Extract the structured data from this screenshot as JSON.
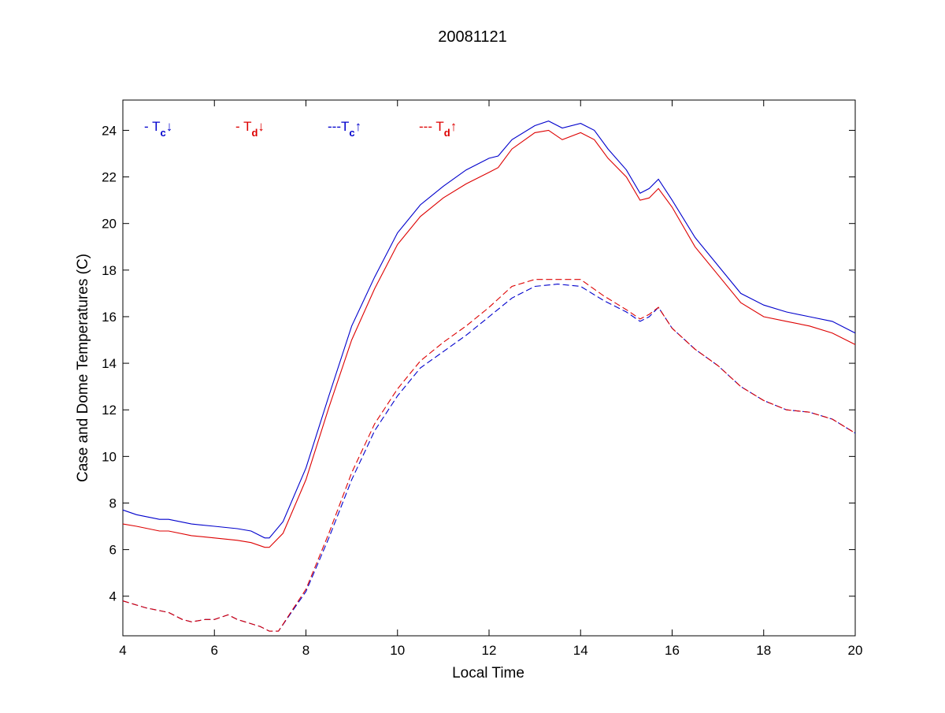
{
  "chart_data": {
    "type": "line",
    "title": "20081121",
    "xlabel": "Local Time",
    "ylabel": "Case and Dome Temperatures (C)",
    "xlim": [
      4,
      20
    ],
    "ylim": [
      2.3,
      25.3
    ],
    "xticks": [
      4,
      6,
      8,
      10,
      12,
      14,
      16,
      18,
      20
    ],
    "yticks": [
      4,
      6,
      8,
      10,
      12,
      14,
      16,
      18,
      20,
      22,
      24
    ],
    "grid": false,
    "legend_position": "top-left inside",
    "legend": [
      {
        "prefix": "- T",
        "sub": "c",
        "arrow": "↓",
        "color": "#0000cc"
      },
      {
        "prefix": "- T",
        "sub": "d",
        "arrow": "↓",
        "color": "#dd0000"
      },
      {
        "prefix": "---T",
        "sub": "c",
        "arrow": "↑",
        "color": "#0000cc"
      },
      {
        "prefix": "--- T",
        "sub": "d",
        "arrow": "↑",
        "color": "#dd0000"
      }
    ],
    "series": [
      {
        "color": "#0000cc",
        "dash": "solid",
        "x": [
          4,
          4.3,
          4.8,
          5,
          5.5,
          6,
          6.5,
          6.8,
          7.1,
          7.2,
          7.5,
          8,
          8.5,
          9,
          9.5,
          10,
          10.5,
          11,
          11.5,
          12,
          12.2,
          12.5,
          13,
          13.3,
          13.6,
          14,
          14.3,
          14.6,
          15,
          15.3,
          15.5,
          15.7,
          16,
          16.5,
          17,
          17.5,
          18,
          18.5,
          19,
          19.5,
          20
        ],
        "y": [
          7.7,
          7.5,
          7.3,
          7.3,
          7.1,
          7.0,
          6.9,
          6.8,
          6.5,
          6.5,
          7.2,
          9.5,
          12.6,
          15.6,
          17.7,
          19.6,
          20.8,
          21.6,
          22.3,
          22.8,
          22.9,
          23.6,
          24.2,
          24.4,
          24.1,
          24.3,
          24.0,
          23.2,
          22.3,
          21.3,
          21.5,
          21.9,
          21.0,
          19.4,
          18.2,
          17.0,
          16.5,
          16.2,
          16.0,
          15.8,
          15.3
        ]
      },
      {
        "color": "#dd0000",
        "dash": "solid",
        "x": [
          4,
          4.3,
          4.8,
          5,
          5.5,
          6,
          6.5,
          6.8,
          7.1,
          7.2,
          7.5,
          8,
          8.5,
          9,
          9.5,
          10,
          10.5,
          11,
          11.5,
          12,
          12.2,
          12.5,
          13,
          13.3,
          13.6,
          14,
          14.3,
          14.6,
          15,
          15.3,
          15.5,
          15.7,
          16,
          16.5,
          17,
          17.5,
          18,
          18.5,
          19,
          19.5,
          20
        ],
        "y": [
          7.1,
          7.0,
          6.8,
          6.8,
          6.6,
          6.5,
          6.4,
          6.3,
          6.1,
          6.1,
          6.7,
          9.0,
          12.1,
          15.0,
          17.2,
          19.1,
          20.3,
          21.1,
          21.7,
          22.2,
          22.4,
          23.2,
          23.9,
          24.0,
          23.6,
          23.9,
          23.6,
          22.8,
          22.0,
          21.0,
          21.1,
          21.5,
          20.7,
          19.0,
          17.8,
          16.6,
          16.0,
          15.8,
          15.6,
          15.3,
          14.8
        ]
      },
      {
        "color": "#0000cc",
        "dash": "dashed",
        "x": [
          4,
          4.5,
          5,
          5.3,
          5.5,
          5.8,
          6,
          6.3,
          6.5,
          7,
          7.2,
          7.4,
          8,
          8.5,
          9,
          9.5,
          10,
          10.5,
          11,
          11.5,
          12,
          12.5,
          13,
          13.5,
          14,
          14.5,
          15,
          15.3,
          15.5,
          15.7,
          16,
          16.5,
          17,
          17.5,
          18,
          18.5,
          19,
          19.5,
          20
        ],
        "y": [
          3.8,
          3.5,
          3.3,
          3.0,
          2.9,
          3.0,
          3.0,
          3.2,
          3.0,
          2.7,
          2.5,
          2.5,
          4.2,
          6.5,
          9.0,
          11.1,
          12.6,
          13.8,
          14.5,
          15.2,
          16.0,
          16.8,
          17.3,
          17.4,
          17.3,
          16.7,
          16.2,
          15.8,
          16.0,
          16.4,
          15.5,
          14.6,
          13.9,
          13.0,
          12.4,
          12.0,
          11.9,
          11.6,
          11.0
        ]
      },
      {
        "color": "#dd0000",
        "dash": "dashed",
        "x": [
          4,
          4.5,
          5,
          5.3,
          5.5,
          5.8,
          6,
          6.3,
          6.5,
          7,
          7.2,
          7.4,
          8,
          8.5,
          9,
          9.5,
          10,
          10.5,
          11,
          11.5,
          12,
          12.5,
          13,
          13.5,
          14,
          14.5,
          15,
          15.3,
          15.5,
          15.7,
          16,
          16.5,
          17,
          17.5,
          18,
          18.5,
          19,
          19.5,
          20
        ],
        "y": [
          3.8,
          3.5,
          3.3,
          3.0,
          2.9,
          3.0,
          3.0,
          3.2,
          3.0,
          2.7,
          2.5,
          2.5,
          4.3,
          6.7,
          9.3,
          11.4,
          12.9,
          14.1,
          14.9,
          15.6,
          16.4,
          17.3,
          17.6,
          17.6,
          17.6,
          16.9,
          16.3,
          15.9,
          16.1,
          16.4,
          15.5,
          14.6,
          13.9,
          13.0,
          12.4,
          12.0,
          11.9,
          11.6,
          11.0
        ]
      }
    ]
  }
}
